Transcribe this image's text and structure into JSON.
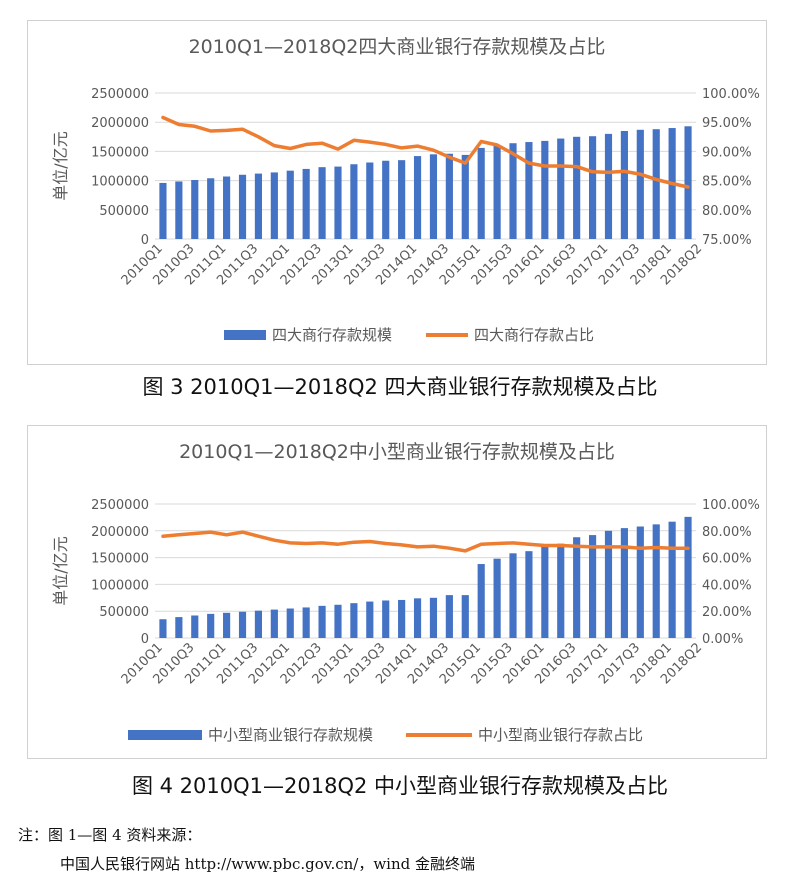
{
  "chart_data": [
    {
      "type": "bar",
      "title": "2010Q1—2018Q2四大商业银行存款规模及占比",
      "ylabel": "单位/亿元",
      "xlabel": "",
      "ylim": [
        0,
        2500000
      ],
      "y2lim": [
        0.75,
        1.0
      ],
      "y_ticks": [
        "0",
        "500000",
        "1000000",
        "1500000",
        "2000000",
        "2500000"
      ],
      "y2_ticks": [
        "75.00%",
        "80.00%",
        "85.00%",
        "90.00%",
        "95.00%",
        "100.00%"
      ],
      "categories": [
        "2010Q1",
        "2010Q2",
        "2010Q3",
        "2010Q4",
        "2011Q1",
        "2011Q2",
        "2011Q3",
        "2011Q4",
        "2012Q1",
        "2012Q2",
        "2012Q3",
        "2012Q4",
        "2013Q1",
        "2013Q2",
        "2013Q3",
        "2013Q4",
        "2014Q1",
        "2014Q2",
        "2014Q3",
        "2014Q4",
        "2015Q1",
        "2015Q2",
        "2015Q3",
        "2015Q4",
        "2016Q1",
        "2016Q2",
        "2016Q3",
        "2016Q4",
        "2017Q1",
        "2017Q2",
        "2017Q3",
        "2017Q4",
        "2018Q1",
        "2018Q2"
      ],
      "x_tick_labels": [
        "2010Q1",
        "2010Q3",
        "2011Q1",
        "2011Q3",
        "2012Q1",
        "2012Q3",
        "2013Q1",
        "2013Q3",
        "2014Q1",
        "2014Q3",
        "2015Q1",
        "2015Q3",
        "2016Q1",
        "2016Q3",
        "2017Q1",
        "2017Q3",
        "2018Q1",
        "2018Q2"
      ],
      "legend_position": "bottom",
      "series": [
        {
          "name": "四大商行存款规模",
          "type": "bar",
          "axis": "left",
          "color": "#4472C4",
          "values": [
            960000,
            985000,
            1010000,
            1040000,
            1070000,
            1100000,
            1120000,
            1140000,
            1170000,
            1200000,
            1230000,
            1240000,
            1280000,
            1310000,
            1340000,
            1350000,
            1420000,
            1450000,
            1460000,
            1440000,
            1560000,
            1600000,
            1640000,
            1660000,
            1680000,
            1720000,
            1750000,
            1760000,
            1800000,
            1850000,
            1870000,
            1880000,
            1900000,
            1930000
          ]
        },
        {
          "name": "四大商行存款占比",
          "type": "line",
          "axis": "right",
          "color": "#ED7D31",
          "values": [
            0.958,
            0.946,
            0.943,
            0.935,
            0.936,
            0.938,
            0.925,
            0.91,
            0.905,
            0.912,
            0.914,
            0.904,
            0.919,
            0.916,
            0.912,
            0.906,
            0.909,
            0.902,
            0.89,
            0.88,
            0.917,
            0.911,
            0.896,
            0.88,
            0.875,
            0.875,
            0.874,
            0.865,
            0.864,
            0.866,
            0.861,
            0.852,
            0.845,
            0.839
          ]
        }
      ]
    },
    {
      "type": "bar",
      "title": "2010Q1—2018Q2中小型商业银行存款规模及占比",
      "ylabel": "单位/亿元",
      "xlabel": "",
      "ylim": [
        0,
        2500000
      ],
      "y2lim": [
        0.0,
        1.0
      ],
      "y_ticks": [
        "0",
        "500000",
        "1000000",
        "1500000",
        "2000000",
        "2500000"
      ],
      "y2_ticks": [
        "0.00%",
        "20.00%",
        "40.00%",
        "60.00%",
        "80.00%",
        "100.00%"
      ],
      "categories": [
        "2010Q1",
        "2010Q2",
        "2010Q3",
        "2010Q4",
        "2011Q1",
        "2011Q2",
        "2011Q3",
        "2011Q4",
        "2012Q1",
        "2012Q2",
        "2012Q3",
        "2012Q4",
        "2013Q1",
        "2013Q2",
        "2013Q3",
        "2013Q4",
        "2014Q1",
        "2014Q2",
        "2014Q3",
        "2014Q4",
        "2015Q1",
        "2015Q2",
        "2015Q3",
        "2015Q4",
        "2016Q1",
        "2016Q2",
        "2016Q3",
        "2016Q4",
        "2017Q1",
        "2017Q2",
        "2017Q3",
        "2017Q4",
        "2018Q1",
        "2018Q2"
      ],
      "x_tick_labels": [
        "2010Q1",
        "2010Q3",
        "2011Q1",
        "2011Q3",
        "2012Q1",
        "2012Q3",
        "2013Q1",
        "2013Q3",
        "2014Q1",
        "2014Q3",
        "2015Q1",
        "2015Q3",
        "2016Q1",
        "2016Q3",
        "2017Q1",
        "2017Q3",
        "2018Q1",
        "2018Q2"
      ],
      "legend_position": "bottom",
      "series": [
        {
          "name": "中小型商业银行存款规模",
          "type": "bar",
          "axis": "left",
          "color": "#4472C4",
          "values": [
            350000,
            390000,
            420000,
            450000,
            470000,
            490000,
            510000,
            530000,
            550000,
            570000,
            600000,
            620000,
            650000,
            680000,
            700000,
            710000,
            740000,
            750000,
            800000,
            800000,
            1380000,
            1480000,
            1580000,
            1620000,
            1720000,
            1760000,
            1880000,
            1920000,
            2000000,
            2050000,
            2080000,
            2120000,
            2170000,
            2260000
          ]
        },
        {
          "name": "中小型商业银行存款占比",
          "type": "line",
          "axis": "right",
          "color": "#ED7D31",
          "values": [
            0.76,
            0.77,
            0.78,
            0.79,
            0.77,
            0.79,
            0.76,
            0.73,
            0.71,
            0.705,
            0.71,
            0.7,
            0.715,
            0.72,
            0.705,
            0.695,
            0.68,
            0.685,
            0.67,
            0.65,
            0.7,
            0.705,
            0.71,
            0.7,
            0.69,
            0.69,
            0.685,
            0.68,
            0.68,
            0.68,
            0.67,
            0.675,
            0.67,
            0.67
          ]
        }
      ]
    }
  ],
  "captions": {
    "fig3": "图 3  2010Q1—2018Q2 四大商业银行存款规模及占比",
    "fig4": "图 4  2010Q1—2018Q2 中小型商业银行存款规模及占比"
  },
  "note": {
    "line1": "注：图 1—图 4 资料来源：",
    "line2": "中国人民银行网站 http://www.pbc.gov.cn/，wind 金融终端"
  }
}
